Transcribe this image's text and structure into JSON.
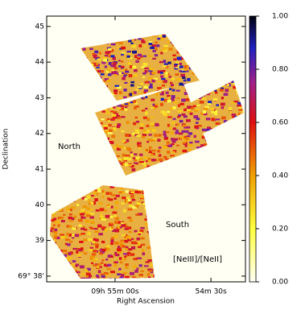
{
  "chart_data": {
    "type": "image",
    "y_label": "Declination",
    "x_label": "Right Ascension",
    "annotations": [
      "North",
      "South",
      "[NeIII]/[NeII]"
    ],
    "xlim": [
      81.4,
      19.2
    ],
    "xticks": [
      {
        "value": 60,
        "label": "09h 55m 00s"
      },
      {
        "value": 30,
        "label": "54m 30s"
      }
    ],
    "ylim": [
      37.84,
      45.29
    ],
    "yticks": [
      {
        "value": 38,
        "label": "69° 38'"
      },
      39,
      40,
      41,
      42,
      43,
      44,
      45
    ],
    "colorbar": {
      "lim": [
        0,
        1
      ],
      "ticks": [
        {
          "value": 0,
          "label": "0.00"
        },
        {
          "value": 0.2,
          "label": "0.20"
        },
        {
          "value": 0.4,
          "label": "0.40"
        },
        {
          "value": 0.6,
          "label": "0.60"
        },
        {
          "value": 0.8,
          "label": "0.80"
        },
        {
          "value": 1,
          "label": "1.00"
        }
      ]
    }
  }
}
